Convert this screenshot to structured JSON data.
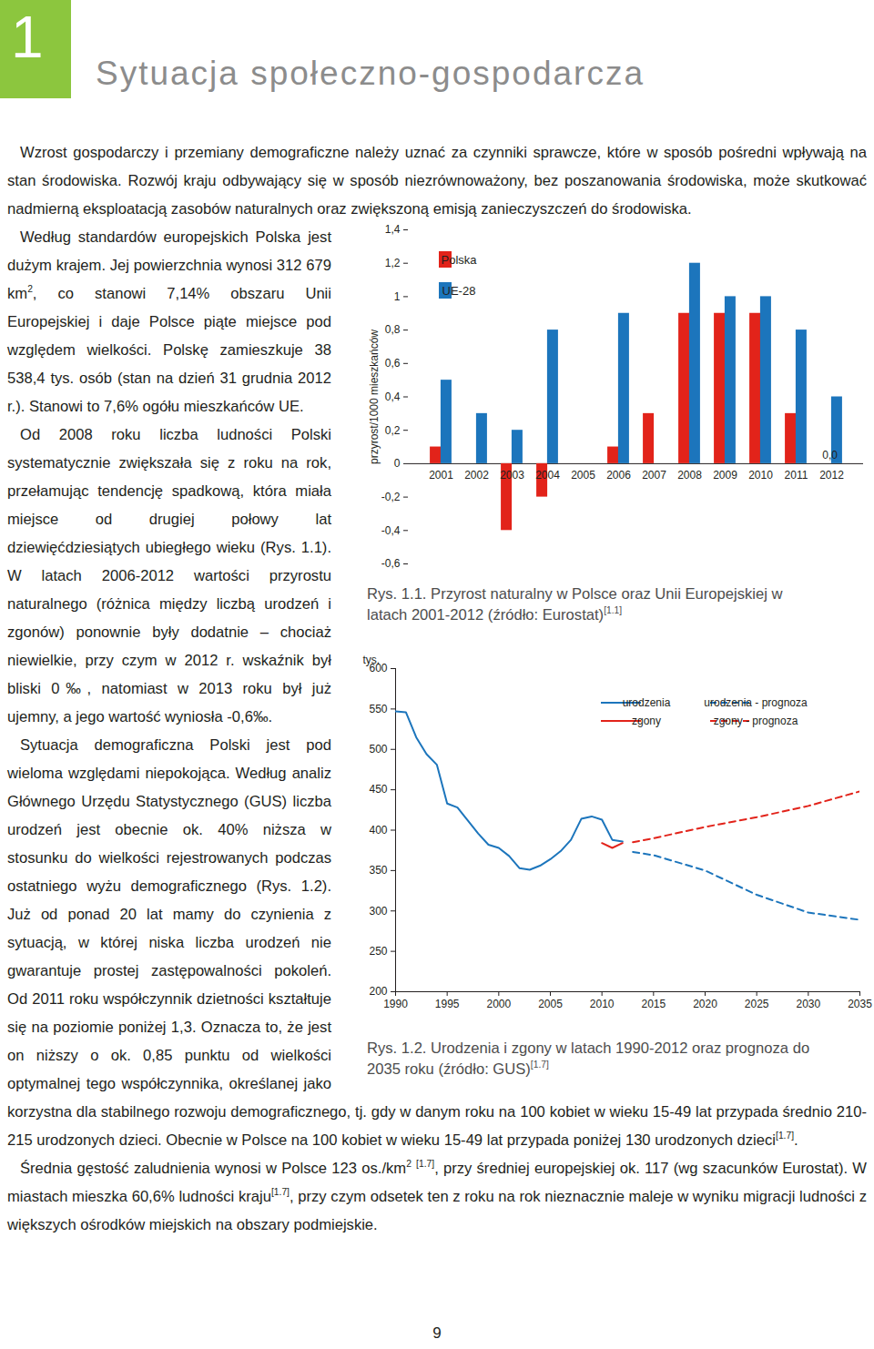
{
  "header": {
    "number": "1",
    "title": "Sytuacja społeczno-gospodarcza"
  },
  "paragraphs": [
    [
      "Wzrost gospodarczy i przemiany demograficzne należy uznać za czynniki sprawcze, które w sposób pośredni wpływają na stan środowiska. Rozwój kraju odbywający się w sposób niezrównoważony, bez poszanowania środowiska, może skutkować nadmierną eksploatacją zasobów naturalnych oraz zwiększoną emisją zanieczyszczeń do środowiska."
    ],
    [
      "Według standardów europejskich Polska jest dużym krajem. Jej powierzchnia wynosi 312 679 km",
      {
        "sup": "2"
      },
      ", co stanowi 7,14% obszaru Unii Europejskiej i daje Polsce piąte miejsce pod względem wielkości. Polskę zamieszkuje 38 538,4 tys. osób (stan na dzień 31 grudnia 2012 r.). Stanowi to 7,6% ogółu mieszkańców UE."
    ],
    [
      "Od 2008 roku liczba ludności Polski systematycznie zwiększała się z roku na rok, przełamując tendencję spadkową, która miała miejsce od drugiej połowy lat dziewięćdziesiątych ubiegłego wieku (Rys. 1.1). W latach 2006-2012 wartości przyrostu naturalnego (różnica między liczbą urodzeń i zgonów) ponownie były dodatnie – chociaż niewielkie, przy czym w 2012 r. wskaźnik był bliski 0‰, natomiast w 2013 roku był już ujemny, a jego wartość wyniosła -0,6‰."
    ],
    [
      "Sytuacja demograficzna Polski jest pod wieloma względami niepokojąca. Według analiz Głównego Urzędu Statystycznego (GUS) liczba urodzeń jest obecnie ok. 40% niższa w stosunku do wielkości rejestrowanych podczas ostatniego wyżu demograficznego (Rys. 1.2). Już od ponad 20 lat mamy do czynienia z sytuacją, w której niska liczba urodzeń nie gwarantuje prostej zastępowalności pokoleń. Od 2011 roku współczynnik dzietności kształtuje się na poziomie poniżej 1,3. Oznacza to, że jest on niższy o ok. 0,85 punktu od wielkości optymalnej tego współczynnika, określanej jako korzystna dla stabilnego rozwoju demograficznego, tj. gdy w danym roku na 100 kobiet w wieku 15-49 lat przypada średnio 210-215 urodzonych dzieci. Obecnie w Polsce na 100 kobiet w wieku 15-49 lat przypada poniżej 130 urodzonych dzieci",
      {
        "sup": "[1.7]"
      },
      "."
    ],
    [
      "Średnia gęstość zaludnienia wynosi w Polsce 123 os./km",
      {
        "sup": "2"
      },
      " ",
      {
        "sup": "[1.7]"
      },
      ", przy średniej europejskiej ok. 117 (wg szacunków Eurostat). W miastach mieszka 60,6% ludności kraju",
      {
        "sup": "[1.7]"
      },
      ", przy czym odsetek ten z roku na rok nieznacznie maleje w wyniku migracji ludności z większych ośrodków miejskich na obszary podmiejskie."
    ]
  ],
  "chart_data": [
    {
      "type": "bar",
      "y_label": "przyrost/1000 mieszkańców",
      "caption": "Rys. 1.1. Przyrost naturalny w Polsce oraz Unii Europejskiej w latach 2001-2012 (źródło: Eurostat)",
      "caption_ref": "[1.1]",
      "categories": [
        2001,
        2002,
        2003,
        2004,
        2005,
        2006,
        2007,
        2008,
        2009,
        2010,
        2011,
        2012
      ],
      "series": [
        {
          "name": "Polska",
          "color": "#e2231a",
          "values": [
            0.1,
            null,
            -0.4,
            -0.2,
            null,
            0.1,
            0.3,
            0.9,
            0.9,
            0.9,
            0.3,
            0.0
          ],
          "value_labels": [
            null,
            null,
            null,
            null,
            null,
            null,
            null,
            null,
            null,
            null,
            null,
            "0,0"
          ]
        },
        {
          "name": "UE-28",
          "color": "#1c75bc",
          "values": [
            0.5,
            0.3,
            0.2,
            0.8,
            null,
            0.9,
            null,
            1.2,
            1.0,
            1.0,
            0.8,
            0.4
          ]
        }
      ],
      "ylim": [
        -0.6,
        1.4
      ],
      "yticks": [
        {
          "value": -0.6,
          "label": "-0,6"
        },
        {
          "value": -0.4,
          "label": "-0,4"
        },
        {
          "value": -0.2,
          "label": "-0,2"
        },
        0,
        {
          "value": 0.2,
          "label": "0,2"
        },
        {
          "value": 0.4,
          "label": "0,4"
        },
        {
          "value": 0.6,
          "label": "0,6"
        },
        {
          "value": 0.8,
          "label": "0,8"
        },
        1,
        {
          "value": 1.2,
          "label": "1,2"
        },
        {
          "value": 1.4,
          "label": "1,4"
        }
      ],
      "legend": "top-left",
      "data_labels": true
    },
    {
      "type": "line",
      "y_label": "tys.",
      "caption": "Rys. 1.2. Urodzenia i zgony w latach 1990-2012 oraz prognoza do 2035 roku (źródło: GUS)",
      "caption_ref": "[1.7]",
      "x": [
        1990,
        1991,
        1992,
        1993,
        1994,
        1995,
        1996,
        1997,
        1998,
        1999,
        2000,
        2001,
        2002,
        2003,
        2004,
        2005,
        2006,
        2007,
        2008,
        2009,
        2010,
        2011,
        2012,
        2013,
        2015,
        2020,
        2025,
        2030,
        2035
      ],
      "series": [
        {
          "name": "urodzenia",
          "color": "#1c75bc",
          "line_style": "solid",
          "values": [
            547,
            546,
            515,
            494,
            481,
            433,
            428,
            412,
            396,
            382,
            378,
            368,
            353,
            351,
            356,
            364,
            374,
            388,
            414,
            417,
            413,
            388,
            386,
            null,
            null,
            null,
            null,
            null,
            null
          ]
        },
        {
          "name": "zgony",
          "color": "#e2231a",
          "line_style": "solid",
          "values": [
            null,
            null,
            null,
            null,
            null,
            null,
            null,
            null,
            null,
            null,
            null,
            null,
            null,
            null,
            null,
            null,
            null,
            null,
            null,
            null,
            384,
            378,
            384,
            null,
            null,
            null,
            null,
            null,
            null
          ]
        },
        {
          "name": "urodzenia - prognoza",
          "color": "#1c75bc",
          "line_style": "dashed",
          "values": [
            null,
            null,
            null,
            null,
            null,
            null,
            null,
            null,
            null,
            null,
            null,
            null,
            null,
            null,
            null,
            null,
            null,
            null,
            null,
            null,
            null,
            null,
            null,
            373,
            369,
            350,
            320,
            298,
            289
          ]
        },
        {
          "name": "zgony - prognoza",
          "color": "#e2231a",
          "line_style": "dashed",
          "values": [
            null,
            null,
            null,
            null,
            null,
            null,
            null,
            null,
            null,
            null,
            null,
            null,
            null,
            null,
            null,
            null,
            null,
            null,
            null,
            null,
            null,
            null,
            null,
            385,
            390,
            404,
            416,
            430,
            448
          ]
        }
      ],
      "xlim": [
        1990,
        2035
      ],
      "xticks": [
        1990,
        1995,
        2000,
        2005,
        2010,
        2015,
        2020,
        2025,
        2030,
        2035
      ],
      "ylim": [
        200,
        600
      ],
      "yticks": [
        200,
        250,
        300,
        350,
        400,
        450,
        500,
        550,
        600
      ],
      "legend": "top-right"
    }
  ],
  "page_number": "9"
}
